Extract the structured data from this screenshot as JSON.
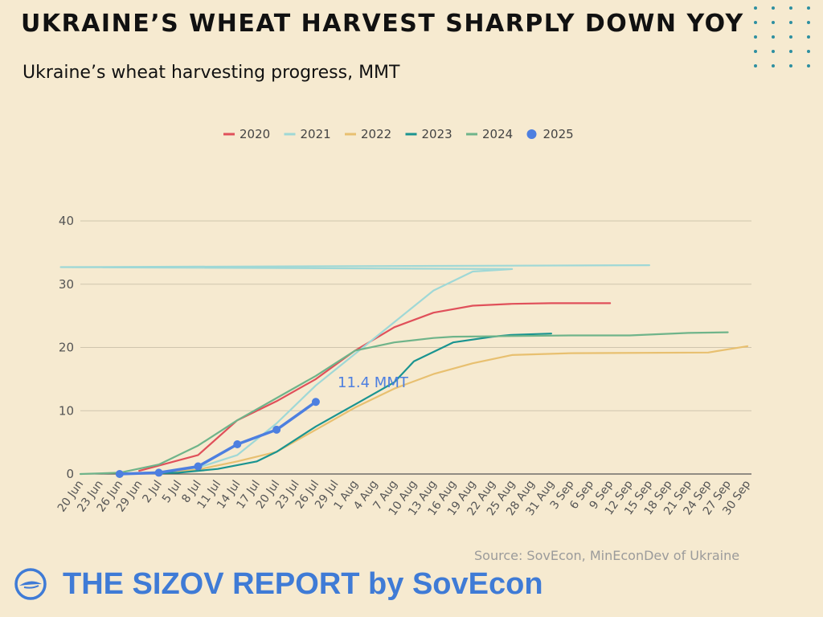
{
  "header": {
    "title": "UKRAINE’S WHEAT HARVEST SHARPLY DOWN YOY",
    "subtitle": "Ukraine’s wheat harvesting progress, MMT"
  },
  "footer": {
    "source": "Source: SovEcon, MinEconDev of Ukraine",
    "brand": "THE SIZOV REPORT by SovEcon"
  },
  "colors": {
    "background": "#f6ead0",
    "brand": "#3f7bd6",
    "accent_dots": "#2d8fa0"
  },
  "chart_data": {
    "type": "line",
    "title": "",
    "xlabel": "",
    "ylabel": "",
    "ylim": [
      0,
      40
    ],
    "yticks": [
      0,
      10,
      20,
      30,
      40
    ],
    "grid": true,
    "legend_position": "top",
    "categories": [
      "20 Jun",
      "23 Jun",
      "26 Jun",
      "29 Jun",
      "2 Jul",
      "5 Jul",
      "8 Jul",
      "11 Jul",
      "14 Jul",
      "17 Jul",
      "20 Jul",
      "23 Jul",
      "26 Jul",
      "29 Jul",
      "1 Aug",
      "4 Aug",
      "7 Aug",
      "10 Aug",
      "13 Aug",
      "16 Aug",
      "19 Aug",
      "22 Aug",
      "25 Aug",
      "28 Aug",
      "31 Aug",
      "3 Sep",
      "6 Sep",
      "9 Sep",
      "12 Sep",
      "15 Sep",
      "18 Sep",
      "21 Sep",
      "24 Sep",
      "27 Sep",
      "30 Sep"
    ],
    "annotation": {
      "text": "11.4 MMT",
      "series": "2025",
      "x": "29 Jul",
      "y": 11.4
    },
    "series": [
      {
        "name": "2020",
        "color": "#e0505a",
        "marker": false,
        "points": [
          [
            "29 Jun",
            0.5
          ],
          [
            "8 Jul",
            3
          ],
          [
            "14 Jul",
            8.5
          ],
          [
            "20 Jul",
            11.5
          ],
          [
            "26 Jul",
            15
          ],
          [
            "1 Aug",
            19.5
          ],
          [
            "7 Aug",
            23.2
          ],
          [
            "13 Aug",
            25.5
          ],
          [
            "19 Aug",
            26.6
          ],
          [
            "25 Aug",
            26.9
          ],
          [
            "31 Aug",
            27
          ],
          [
            "9 Sep",
            27
          ]
        ]
      },
      {
        "name": "2021",
        "color": "#9fd8d6",
        "marker": false,
        "points": [
          [
            "26 Jun",
            0
          ],
          [
            "2 Jul",
            0.3
          ],
          [
            "8 Jul",
            1
          ],
          [
            "14 Jul",
            3
          ],
          [
            "20 Jul",
            8
          ],
          [
            "26 Jul",
            14
          ],
          [
            "1 Aug",
            19
          ],
          [
            "7 Aug",
            24
          ],
          [
            "13 Aug",
            29
          ],
          [
            "19 Aug",
            32
          ],
          [
            "25 Aug",
            32.4
          ],
          [
            "1 Sep",
            32.7
          ],
          [
            "15 Sep",
            33
          ]
        ]
      },
      {
        "name": "2022",
        "color": "#e8c070",
        "marker": false,
        "points": [
          [
            "26 Jun",
            0
          ],
          [
            "2 Jul",
            0.1
          ],
          [
            "8 Jul",
            0.7
          ],
          [
            "14 Jul",
            2
          ],
          [
            "20 Jul",
            3.5
          ],
          [
            "26 Jul",
            7
          ],
          [
            "1 Aug",
            10.5
          ],
          [
            "7 Aug",
            13.5
          ],
          [
            "13 Aug",
            15.8
          ],
          [
            "19 Aug",
            17.5
          ],
          [
            "25 Aug",
            18.8
          ],
          [
            "3 Sep",
            19.1
          ],
          [
            "24 Sep",
            19.2
          ],
          [
            "30 Sep",
            20.2
          ]
        ]
      },
      {
        "name": "2023",
        "color": "#1a9490",
        "marker": false,
        "points": [
          [
            "26 Jun",
            0
          ],
          [
            "5 Jul",
            0.2
          ],
          [
            "11 Jul",
            0.8
          ],
          [
            "17 Jul",
            2
          ],
          [
            "20 Jul",
            3.5
          ],
          [
            "26 Jul",
            7.5
          ],
          [
            "1 Aug",
            11
          ],
          [
            "7 Aug",
            14.5
          ],
          [
            "10 Aug",
            17.8
          ],
          [
            "16 Aug",
            20.8
          ],
          [
            "22 Aug",
            21.7
          ],
          [
            "25 Aug",
            22
          ],
          [
            "31 Aug",
            22.2
          ]
        ]
      },
      {
        "name": "2024",
        "color": "#6fb48a",
        "marker": false,
        "points": [
          [
            "20 Jun",
            0
          ],
          [
            "26 Jun",
            0.2
          ],
          [
            "2 Jul",
            1.5
          ],
          [
            "8 Jul",
            4.5
          ],
          [
            "14 Jul",
            8.5
          ],
          [
            "20 Jul",
            12
          ],
          [
            "26 Jul",
            15.5
          ],
          [
            "1 Aug",
            19.5
          ],
          [
            "7 Aug",
            20.8
          ],
          [
            "13 Aug",
            21.5
          ],
          [
            "16 Aug",
            21.7
          ],
          [
            "25 Aug",
            21.8
          ],
          [
            "3 Sep",
            21.9
          ],
          [
            "12 Sep",
            21.9
          ],
          [
            "21 Sep",
            22.3
          ],
          [
            "27 Sep",
            22.4
          ]
        ]
      },
      {
        "name": "2025",
        "color": "#4d7fe0",
        "marker": true,
        "points": [
          [
            "26 Jun",
            0
          ],
          [
            "2 Jul",
            0.2
          ],
          [
            "8 Jul",
            1.2
          ],
          [
            "14 Jul",
            4.7
          ],
          [
            "20 Jul",
            7
          ],
          [
            "26 Jul",
            11.4
          ]
        ]
      }
    ]
  }
}
